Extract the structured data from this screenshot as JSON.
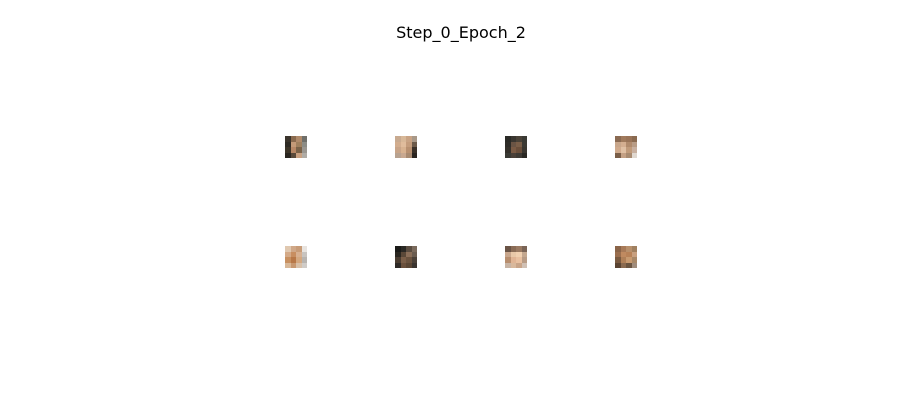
{
  "title": "Step_0_Epoch_2",
  "grid": {
    "rows": 2,
    "cols": 4
  },
  "images": [
    {
      "row": 0,
      "col": 0,
      "pixels": [
        "#3a342c",
        "#8a6a4e",
        "#b08a6a",
        "#6f6f6a",
        "#2e2a24",
        "#c49a78",
        "#a0805e",
        "#8c8c86",
        "#3c3428",
        "#b88866",
        "#7a6248",
        "#9a9690",
        "#2a2620",
        "#5a4a3a",
        "#c8a080",
        "#b0aca6"
      ]
    },
    {
      "row": 0,
      "col": 1,
      "pixels": [
        "#c8aa90",
        "#d8b898",
        "#c9a384",
        "#a89888",
        "#d2ad8e",
        "#e0bc9c",
        "#c49c7c",
        "#6c5a4a",
        "#c8a488",
        "#d8b290",
        "#b89070",
        "#3a3028",
        "#b8a290",
        "#c8a890",
        "#a88a70",
        "#2a2420"
      ]
    },
    {
      "row": 0,
      "col": 2,
      "pixels": [
        "#2a2a26",
        "#3a3630",
        "#4a4238",
        "#3a3a34",
        "#2e2c28",
        "#6a5444",
        "#7a5e48",
        "#3c3a34",
        "#34302a",
        "#7a5a44",
        "#6a4e3a",
        "#3a3630",
        "#3a3a34",
        "#4a4038",
        "#3e3a34",
        "#2a2824"
      ]
    },
    {
      "row": 0,
      "col": 3,
      "pixels": [
        "#8a6a52",
        "#a07a5c",
        "#9a7458",
        "#8a6a50",
        "#c8a68a",
        "#d4ae90",
        "#b08a6c",
        "#b89c86",
        "#d0aa8c",
        "#e0c0a4",
        "#c09a7a",
        "#c8b0a0",
        "#7a5e48",
        "#c4a084",
        "#a88a70",
        "#e0d8d0"
      ]
    },
    {
      "row": 1,
      "col": 0,
      "pixels": [
        "#e0c8b0",
        "#d0a888",
        "#c89c78",
        "#e8e4e0",
        "#d4aa88",
        "#c88e60",
        "#d8b090",
        "#c8c4c0",
        "#c89060",
        "#b87848",
        "#d4a880",
        "#b8b4b0",
        "#d8b898",
        "#c89870",
        "#d8c0a8",
        "#d0ccc8"
      ]
    },
    {
      "row": 1,
      "col": 1,
      "pixels": [
        "#1a1a18",
        "#2a2824",
        "#5a4c40",
        "#7a6a5c",
        "#2a2620",
        "#5a4838",
        "#8a6e58",
        "#6a5c50",
        "#4a3c30",
        "#7a5e48",
        "#6a523e",
        "#4a4038",
        "#2e2a26",
        "#6a503c",
        "#5a4634",
        "#3a3430"
      ]
    },
    {
      "row": 1,
      "col": 2,
      "pixels": [
        "#6a5446",
        "#8a6c56",
        "#9a7a62",
        "#7a6456",
        "#c8a68c",
        "#e8c8a8",
        "#f0d0b0",
        "#c4a890",
        "#b88e6e",
        "#e0b494",
        "#e8c0a0",
        "#b89c86",
        "#c8b4a4",
        "#d8b89c",
        "#c8a488",
        "#d0c0b4"
      ]
    },
    {
      "row": 1,
      "col": 3,
      "pixels": [
        "#8a6448",
        "#a87a58",
        "#b8906c",
        "#a08060",
        "#9a6e4e",
        "#c08a60",
        "#b88258",
        "#c8a080",
        "#7a5a40",
        "#b08058",
        "#c89a70",
        "#a88868",
        "#5a4432",
        "#8a6a50",
        "#6a5440",
        "#a08c7c"
      ]
    }
  ]
}
